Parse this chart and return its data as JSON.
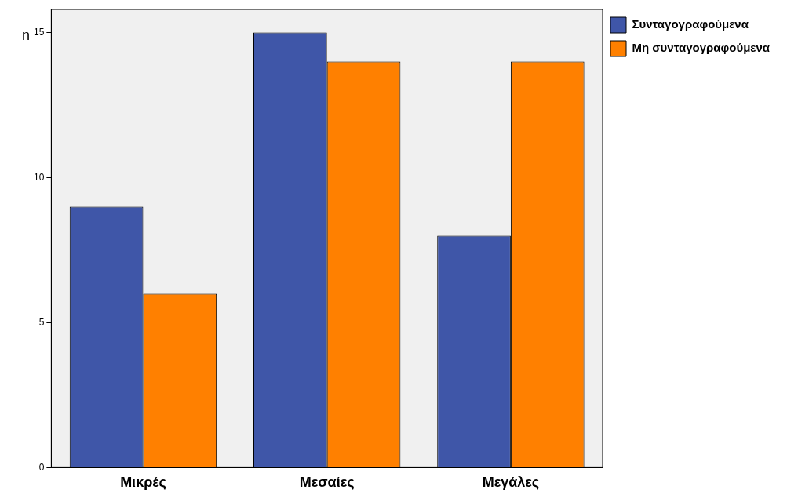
{
  "chart_data": {
    "type": "bar",
    "ylabel": "n",
    "categories": [
      "Μικρές",
      "Μεσαίες",
      "Μεγάλες"
    ],
    "series": [
      {
        "name": "Συνταγογραφούμενα",
        "color": "#3f56a8",
        "values": [
          9,
          15,
          8
        ]
      },
      {
        "name": "Μη συνταγογραφούμενα",
        "color": "#ff8000",
        "values": [
          6,
          14,
          14
        ]
      }
    ],
    "ylim": [
      0,
      15.8
    ],
    "yticks": [
      0,
      5,
      10,
      15
    ],
    "grid": false,
    "legend": "top right"
  }
}
